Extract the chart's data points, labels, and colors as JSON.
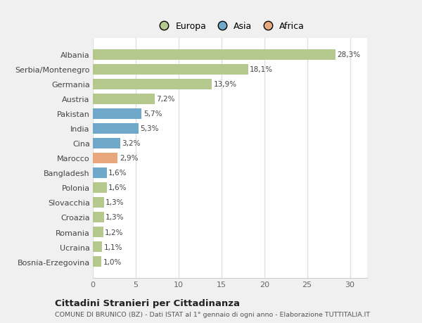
{
  "categories": [
    "Bosnia-Erzegovina",
    "Ucraina",
    "Romania",
    "Croazia",
    "Slovacchia",
    "Polonia",
    "Bangladesh",
    "Marocco",
    "Cina",
    "India",
    "Pakistan",
    "Austria",
    "Germania",
    "Serbia/Montenegro",
    "Albania"
  ],
  "values": [
    1.0,
    1.1,
    1.2,
    1.3,
    1.3,
    1.6,
    1.6,
    2.9,
    3.2,
    5.3,
    5.7,
    7.2,
    13.9,
    18.1,
    28.3
  ],
  "colors": [
    "#b5c98e",
    "#b5c98e",
    "#b5c98e",
    "#b5c98e",
    "#b5c98e",
    "#b5c98e",
    "#6fa8c8",
    "#e8a87c",
    "#6fa8c8",
    "#6fa8c8",
    "#6fa8c8",
    "#b5c98e",
    "#b5c98e",
    "#b5c98e",
    "#b5c98e"
  ],
  "labels": [
    "1,0%",
    "1,1%",
    "1,2%",
    "1,3%",
    "1,3%",
    "1,6%",
    "1,6%",
    "2,9%",
    "3,2%",
    "5,3%",
    "5,7%",
    "7,2%",
    "13,9%",
    "18,1%",
    "28,3%"
  ],
  "xlim": [
    0,
    32
  ],
  "xticks": [
    0,
    5,
    10,
    15,
    20,
    25,
    30
  ],
  "title": "Cittadini Stranieri per Cittadinanza",
  "subtitle": "COMUNE DI BRUNICO (BZ) - Dati ISTAT al 1° gennaio di ogni anno - Elaborazione TUTTITALIA.IT",
  "legend_labels": [
    "Europa",
    "Asia",
    "Africa"
  ],
  "legend_colors": [
    "#b5c98e",
    "#6fa8c8",
    "#e8a87c"
  ],
  "fig_bg_color": "#f0f0f0",
  "plot_bg_color": "#ffffff",
  "grid_color": "#e0e0e0"
}
